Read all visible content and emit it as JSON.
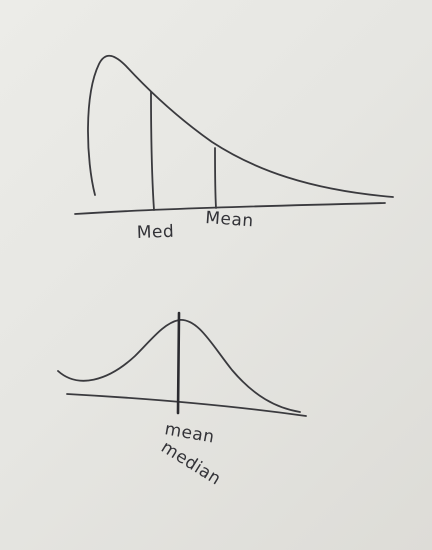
{
  "diagrams": {
    "skewed": {
      "labels": {
        "median": "Med",
        "mean": "Mean"
      }
    },
    "symmetric": {
      "labels": {
        "mean": "mean",
        "median": "median"
      }
    }
  },
  "colors": {
    "background": "#e7e7e3",
    "ink": "#3a3a3e"
  }
}
